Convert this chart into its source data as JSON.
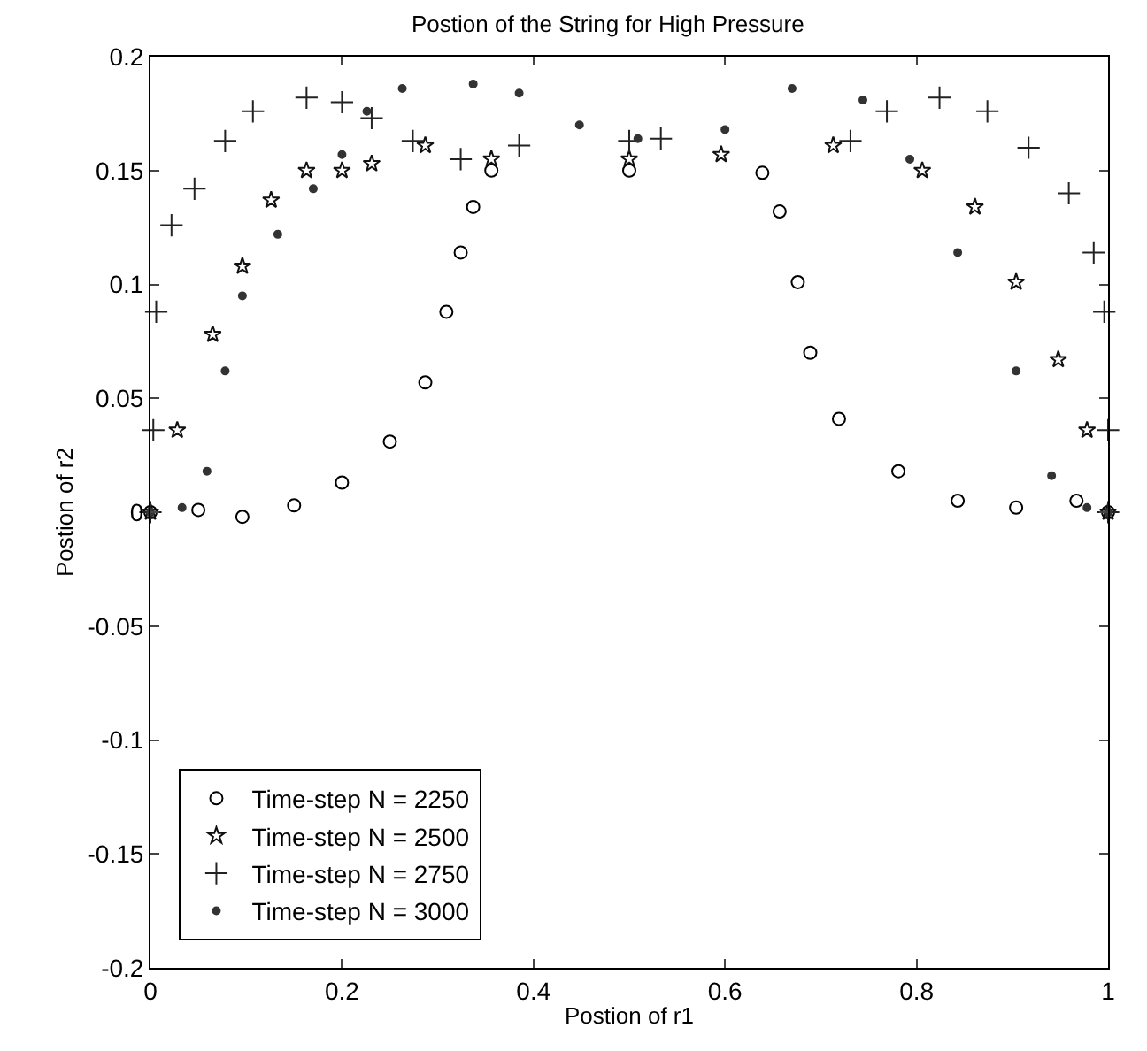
{
  "chart_data": {
    "type": "scatter",
    "title": "Postion of the String for High Pressure",
    "xlabel": "Postion of r1",
    "ylabel": "Postion of r2",
    "xlim": [
      0,
      1
    ],
    "xticks": [
      0,
      0.2,
      0.4,
      0.6,
      0.8,
      1
    ],
    "ylim": [
      -0.2,
      0.2
    ],
    "yticks": [
      -0.2,
      -0.15,
      -0.1,
      -0.05,
      0,
      0.05,
      0.1,
      0.15,
      0.2
    ],
    "grid": false,
    "legend": "bottom left",
    "series": [
      {
        "name": "Time-step N = 2250",
        "color": "#000000",
        "marker": "circle",
        "x": [
          0,
          0.05,
          0.096,
          0.15,
          0.2,
          0.25,
          0.287,
          0.309,
          0.324,
          0.337,
          0.356,
          0.5,
          0.639,
          0.657,
          0.676,
          0.689,
          0.719,
          0.781,
          0.843,
          0.904,
          0.967,
          1
        ],
        "values": [
          0,
          0.001,
          -0.002,
          0.003,
          0.013,
          0.031,
          0.057,
          0.088,
          0.114,
          0.134,
          0.15,
          0.15,
          0.149,
          0.132,
          0.101,
          0.07,
          0.041,
          0.018,
          0.005,
          0.002,
          0.005,
          0
        ]
      },
      {
        "name": "Time-step N = 2500",
        "color": "#111111",
        "marker": "star",
        "x": [
          0,
          0.028,
          0.065,
          0.096,
          0.126,
          0.163,
          0.2,
          0.231,
          0.287,
          0.356,
          0.5,
          0.596,
          0.713,
          0.806,
          0.861,
          0.904,
          0.948,
          0.978,
          1
        ],
        "values": [
          0,
          0.036,
          0.078,
          0.108,
          0.137,
          0.15,
          0.15,
          0.153,
          0.161,
          0.155,
          0.155,
          0.157,
          0.161,
          0.15,
          0.134,
          0.101,
          0.067,
          0.036,
          0
        ]
      },
      {
        "name": "Time-step N = 2750",
        "color": "#222222",
        "marker": "cross",
        "x": [
          0,
          0.003,
          0.006,
          0.022,
          0.046,
          0.078,
          0.107,
          0.163,
          0.2,
          0.231,
          0.274,
          0.324,
          0.385,
          0.5,
          0.533,
          0.731,
          0.769,
          0.824,
          0.874,
          0.917,
          0.959,
          0.985,
          0.996,
          1,
          1
        ],
        "values": [
          0,
          0.036,
          0.088,
          0.126,
          0.142,
          0.163,
          0.176,
          0.182,
          0.18,
          0.173,
          0.163,
          0.155,
          0.161,
          0.163,
          0.164,
          0.163,
          0.176,
          0.182,
          0.176,
          0.16,
          0.14,
          0.114,
          0.088,
          0.036,
          0
        ]
      },
      {
        "name": "Time-step N = 3000",
        "color": "#333333",
        "marker": "circle",
        "x": [
          0,
          0.033,
          0.059,
          0.078,
          0.096,
          0.133,
          0.17,
          0.2,
          0.226,
          0.263,
          0.337,
          0.385,
          0.448,
          0.509,
          0.6,
          0.67,
          0.744,
          0.793,
          0.843,
          0.904,
          0.941,
          0.978,
          1
        ],
        "values": [
          0,
          0.002,
          0.018,
          0.062,
          0.095,
          0.122,
          0.142,
          0.157,
          0.176,
          0.186,
          0.188,
          0.184,
          0.17,
          0.164,
          0.168,
          0.186,
          0.181,
          0.155,
          0.114,
          0.062,
          0.016,
          0.002,
          0
        ]
      }
    ]
  }
}
